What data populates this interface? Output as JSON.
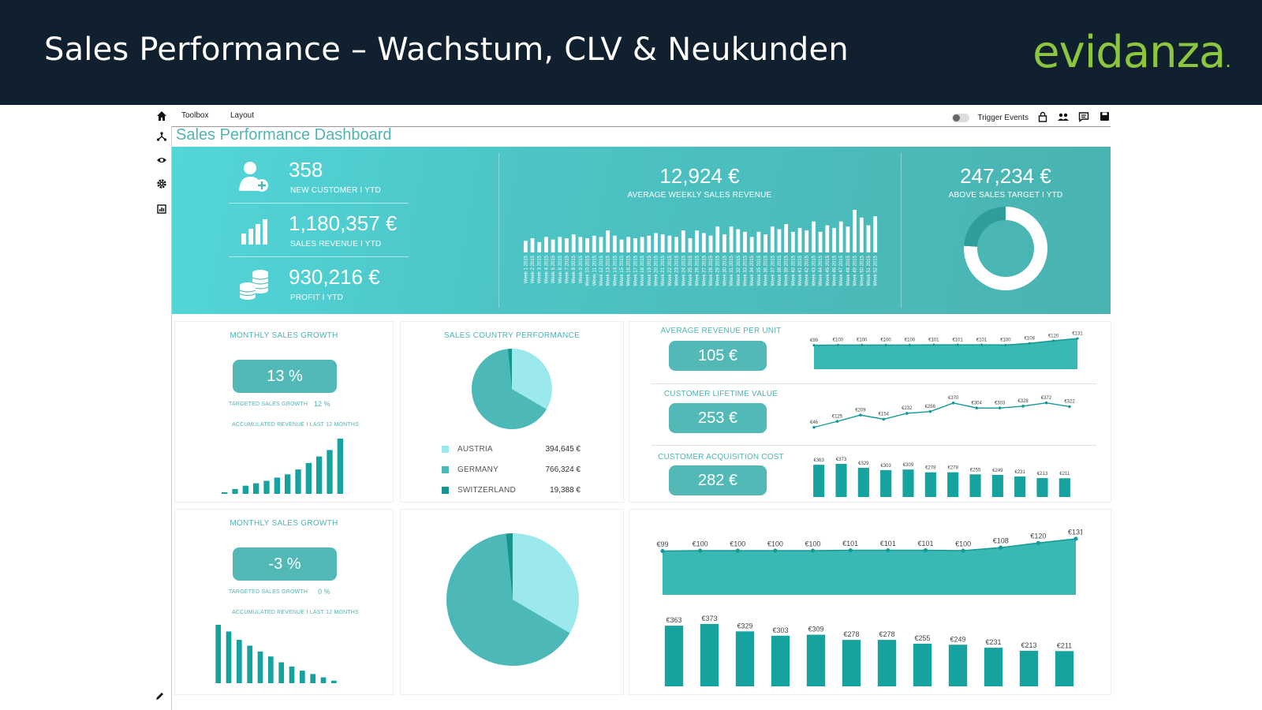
{
  "banner": {
    "title": "Sales Performance – Wachstum, CLV & Neukunden",
    "logo": "evidanza",
    "logo_dot": ".",
    "background": "#11202e",
    "logo_color": "#8cc63f"
  },
  "sidebar": {
    "icons": [
      "home-icon",
      "share-icon",
      "eye-icon",
      "gear-icon",
      "report-icon"
    ],
    "edit_icon": "pencil-icon"
  },
  "menubar": {
    "toolbox": "Toolbox",
    "layout": "Layout",
    "trigger_events": "Trigger Events",
    "tools": [
      "lock-icon",
      "users-icon",
      "comment-icon",
      "save-icon"
    ]
  },
  "dashboard": {
    "title": "Sales Performance Dashboard",
    "accent": "#4fb3b3",
    "kpis": [
      {
        "value": "358",
        "label": "NEW CUSTOMER I YTD",
        "icon": "add-user-icon"
      },
      {
        "value": "1,180,357 €",
        "label": "SALES REVENUE I YTD",
        "icon": "bar-chart-icon"
      },
      {
        "value": "930,216 €",
        "label": "PROFIT I YTD",
        "icon": "coins-icon"
      }
    ],
    "weekly": {
      "value": "12,924 €",
      "label": "AVERAGE WEEKLY SALES REVENUE"
    },
    "target": {
      "value": "247,234 €",
      "label": "ABOVE SALES TARGET I YTD"
    },
    "growth_1": {
      "title": "MONTHLY SALES GROWTH",
      "value": "13 %",
      "target_label": "TARGETED SALES GROWTH",
      "target_value": "12 %",
      "accum_label": "ACCUMULATED REVENUE I LAST 12 MONTHS"
    },
    "growth_2": {
      "title": "MONTHLY SALES GROWTH",
      "value": "-3 %",
      "target_label": "TARGETED SALES GROWTH",
      "target_value": "0 %",
      "accum_label": "ACCUMULATED REVENUE I LAST 12 MONTHS"
    },
    "country": {
      "title": "SALES COUNTRY PERFORMANCE",
      "rows": [
        {
          "name": "AUSTRIA",
          "value": "394,645 €",
          "color": "#9be9ec"
        },
        {
          "name": "GERMANY",
          "value": "766,324 €",
          "color": "#4cb9b8"
        },
        {
          "name": "SWITZERLAND",
          "value": "19,388 €",
          "color": "#16948f"
        }
      ]
    },
    "metrics": [
      {
        "title": "AVERAGE REVENUE PER UNIT",
        "value": "105 €"
      },
      {
        "title": "CUSTOMER LIFETIME VALUE",
        "value": "253 €"
      },
      {
        "title": "CUSTOMER ACQUISITION COST",
        "value": "282 €"
      }
    ]
  },
  "chart_data": [
    {
      "id": "weekly_revenue",
      "type": "bar",
      "categories": [
        "Week 1 2015",
        "Week 2 2015",
        "Week 3 2015",
        "Week 4 2015",
        "Week 5 2015",
        "Week 6 2015",
        "Week 7 2015",
        "Week 8 2015",
        "Week 9 2015",
        "Week 10 2015",
        "Week 11 2015",
        "Week 12 2015",
        "Week 13 2015",
        "Week 14 2015",
        "Week 15 2015",
        "Week 16 2015",
        "Week 17 2015",
        "Week 18 2015",
        "Week 19 2015",
        "Week 20 2015",
        "Week 21 2015",
        "Week 22 2015",
        "Week 23 2015",
        "Week 24 2015",
        "Week 25 2015",
        "Week 26 2015",
        "Week 27 2015",
        "Week 28 2015",
        "Week 29 2015",
        "Week 30 2015",
        "Week 31 2015",
        "Week 32 2015",
        "Week 33 2015",
        "Week 34 2015",
        "Week 35 2015",
        "Week 36 2015",
        "Week 37 2015",
        "Week 38 2015",
        "Week 39 2015",
        "Week 40 2015",
        "Week 41 2015",
        "Week 42 2015",
        "Week 43 2015",
        "Week 44 2015",
        "Week 45 2015",
        "Week 46 2015",
        "Week 47 2015",
        "Week 48 2015",
        "Week 49 2015",
        "Week 50 2015",
        "Week 51 2015",
        "Week 52 2015"
      ],
      "values": [
        9,
        11,
        8,
        12,
        10,
        12,
        11,
        14,
        12,
        11,
        13,
        12,
        17,
        13,
        10,
        12,
        11,
        12,
        13,
        15,
        14,
        13,
        12,
        17,
        11,
        17,
        15,
        13,
        20,
        14,
        20,
        18,
        16,
        12,
        16,
        14,
        20,
        18,
        22,
        16,
        19,
        17,
        24,
        16,
        21,
        19,
        24,
        20,
        33,
        27,
        21,
        28
      ],
      "color": "#ffffff"
    },
    {
      "id": "above_target_donut",
      "type": "pie",
      "values": [
        76,
        24
      ],
      "colors": [
        "#ffffff",
        "#2f9e9b"
      ]
    },
    {
      "id": "accum_revenue_1",
      "type": "bar",
      "values": [
        2,
        6,
        10,
        13,
        16,
        20,
        24,
        30,
        38,
        46,
        54,
        68
      ],
      "color": "#16a39f"
    },
    {
      "id": "accum_revenue_2",
      "type": "bar",
      "values": [
        70,
        62,
        52,
        45,
        38,
        32,
        25,
        20,
        15,
        11,
        7,
        3
      ],
      "color": "#16a39f"
    },
    {
      "id": "country_pie",
      "type": "pie",
      "categories": [
        "AUSTRIA",
        "GERMANY",
        "SWITZERLAND"
      ],
      "values": [
        394645,
        766324,
        19388
      ],
      "colors": [
        "#9be9ec",
        "#4cb9b8",
        "#16948f"
      ]
    },
    {
      "id": "revenue_per_unit",
      "type": "area",
      "values": [
        99,
        100,
        100,
        100,
        100,
        101,
        101,
        101,
        100,
        108,
        120,
        131
      ],
      "labels": [
        "€99",
        "€100",
        "€100",
        "€100",
        "€100",
        "€101",
        "€101",
        "€101",
        "€100",
        "€108",
        "€120",
        "€131"
      ],
      "color": "#3ab8b4"
    },
    {
      "id": "clv",
      "type": "line",
      "values": [
        46,
        125,
        209,
        154,
        232,
        256,
        370,
        304,
        303,
        328,
        372,
        322
      ],
      "labels": [
        "€46",
        "€125",
        "€209",
        "€154",
        "€232",
        "€256",
        "€370",
        "€304",
        "€303",
        "€328",
        "€372",
        "€322"
      ],
      "color": "#1fa8a4"
    },
    {
      "id": "cac",
      "type": "bar",
      "values": [
        363,
        373,
        329,
        303,
        309,
        278,
        278,
        255,
        249,
        231,
        213,
        211
      ],
      "labels": [
        "€363",
        "€373",
        "€329",
        "€303",
        "€309",
        "€278",
        "€278",
        "€255",
        "€249",
        "€231",
        "€213",
        "€211"
      ],
      "color": "#16a39f"
    }
  ]
}
